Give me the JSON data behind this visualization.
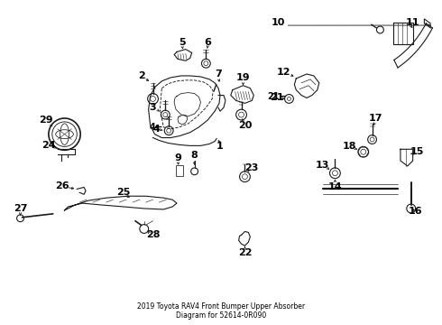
{
  "title": "2019 Toyota RAV4 Front Bumper Upper Absorber\nDiagram for 52614-0R090",
  "bg_color": "#ffffff",
  "line_color": "#1a1a1a",
  "text_color": "#000000",
  "label_fontsize": 7.5,
  "fig_w": 4.9,
  "fig_h": 3.6,
  "dpi": 100
}
